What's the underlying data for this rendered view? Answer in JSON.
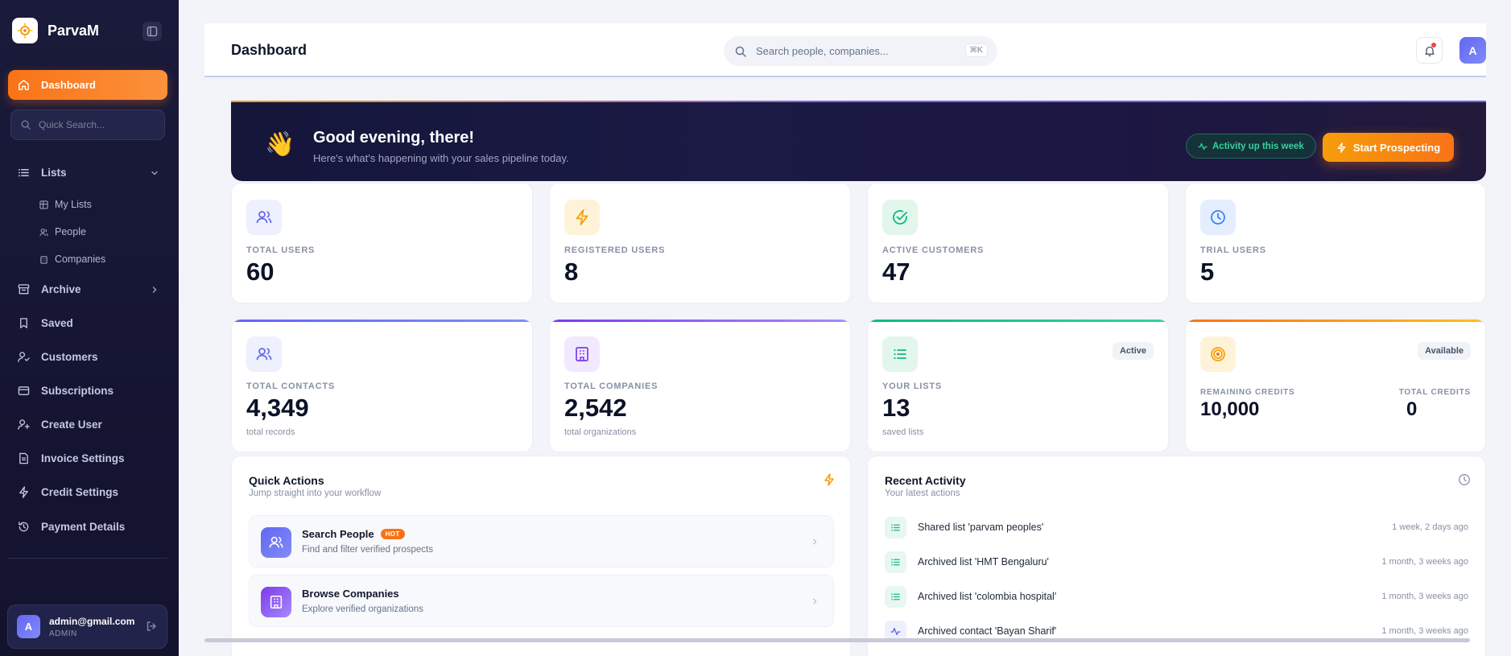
{
  "brand": {
    "name": "ParvaM"
  },
  "sidebar": {
    "active_item": "Dashboard",
    "quick_search_placeholder": "Quick Search...",
    "lists_label": "Lists",
    "sub_items": [
      "My Lists",
      "People",
      "Companies"
    ],
    "items": [
      "Archive",
      "Saved",
      "Customers",
      "Subscriptions",
      "Create User",
      "Invoice Settings",
      "Credit Settings",
      "Payment Details"
    ],
    "user": {
      "initial": "A",
      "email": "admin@gmail.com",
      "role": "ADMIN"
    }
  },
  "header": {
    "title": "Dashboard",
    "search_placeholder": "Search people, companies...",
    "shortcut": "⌘K",
    "avatar_initial": "A"
  },
  "banner": {
    "emoji": "👋",
    "greeting": "Good evening, there!",
    "subtitle": "Here's what's happening with your sales pipeline today.",
    "activity_pill": "Activity up this week",
    "cta": "Start Prospecting"
  },
  "stats_row1": [
    {
      "label": "TOTAL USERS",
      "value": "60",
      "icon": "users-icon",
      "color": "#6366f1"
    },
    {
      "label": "REGISTERED USERS",
      "value": "8",
      "icon": "zap-icon",
      "color": "#f59e0b"
    },
    {
      "label": "ACTIVE CUSTOMERS",
      "value": "47",
      "icon": "check-circle-icon",
      "color": "#10b981"
    },
    {
      "label": "TRIAL USERS",
      "value": "5",
      "icon": "clock-icon",
      "color": "#3b82f6"
    }
  ],
  "stats_row2": [
    {
      "label": "TOTAL CONTACTS",
      "value": "4,349",
      "sub": "total records"
    },
    {
      "label": "TOTAL COMPANIES",
      "value": "2,542",
      "sub": "total organizations"
    },
    {
      "label": "YOUR LISTS",
      "value": "13",
      "sub": "saved lists",
      "chip": "Active"
    },
    {
      "chip": "Available",
      "remaining_label": "REMAINING CREDITS",
      "remaining_value": "10,000",
      "total_label": "TOTAL CREDITS",
      "total_value": "0"
    }
  ],
  "quick_actions": {
    "title": "Quick Actions",
    "subtitle": "Jump straight into your workflow",
    "items": [
      {
        "title": "Search People",
        "badge": "HOT",
        "sub": "Find and filter verified prospects"
      },
      {
        "title": "Browse Companies",
        "sub": "Explore verified organizations"
      }
    ]
  },
  "recent_activity": {
    "title": "Recent Activity",
    "subtitle": "Your latest actions",
    "items": [
      {
        "text": "Shared list 'parvam peoples'",
        "time": "1 week, 2 days ago"
      },
      {
        "text": "Archived list 'HMT Bengaluru'",
        "time": "1 month, 3 weeks ago"
      },
      {
        "text": "Archived list 'colombia hospital'",
        "time": "1 month, 3 weeks ago"
      },
      {
        "text": "Archived contact 'Bayan Sharif'",
        "time": "1 month, 3 weeks ago"
      }
    ]
  },
  "colors": {
    "accent": "#f97316",
    "sidebar_bg": "#1a1a3a",
    "primary": "#6366f1"
  }
}
